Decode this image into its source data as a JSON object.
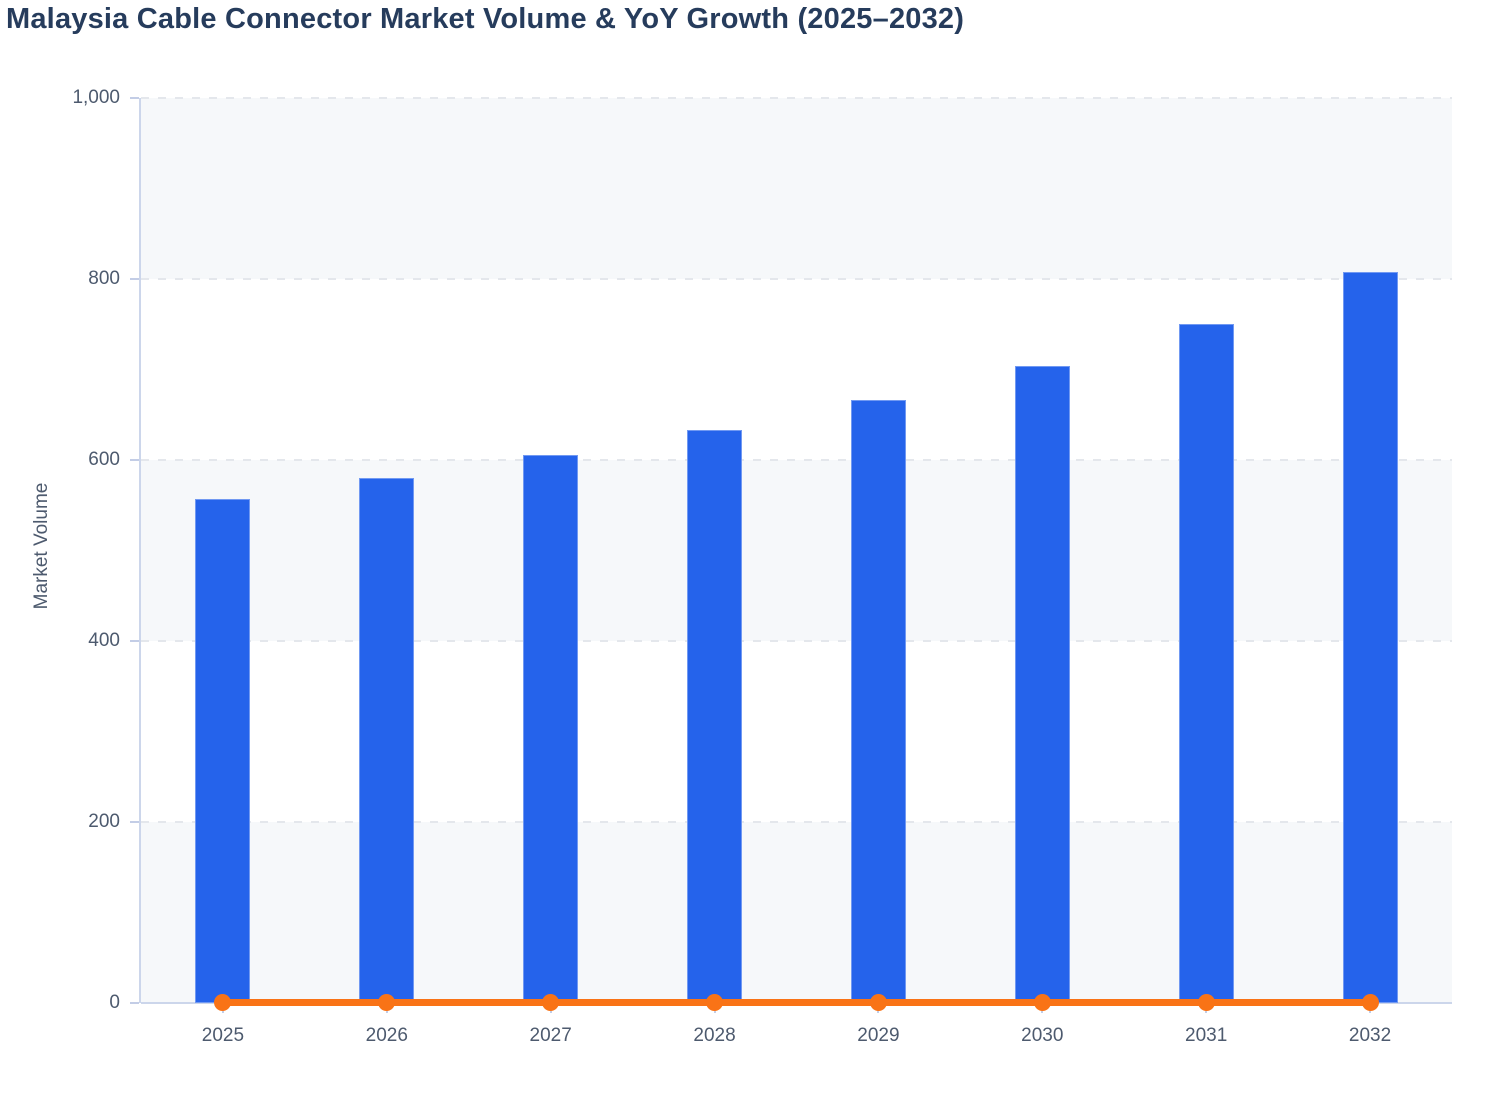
{
  "chart_data": {
    "type": "combo-bar-line",
    "title": "Malaysia Cable Connector Market Volume & YoY Growth (2025–2032)",
    "categories": [
      "2025",
      "2026",
      "2027",
      "2028",
      "2029",
      "2030",
      "2031",
      "2032"
    ],
    "series": [
      {
        "name": "Market Volume",
        "type": "bar",
        "color": "#2563eb",
        "values": [
          557,
          580,
          605,
          633,
          666,
          704,
          750,
          808
        ]
      },
      {
        "name": "YoY Growth",
        "type": "line",
        "color": "#f97316",
        "values": [
          0,
          0,
          0,
          0,
          0,
          0,
          0,
          0
        ]
      }
    ],
    "xlabel": "",
    "ylabel": "Market Volume",
    "ylim": [
      0,
      1000
    ],
    "ytick_step": 200,
    "ytick_labels": [
      "0",
      "200",
      "400",
      "600",
      "800",
      "1,000"
    ],
    "grid": "horizontal dashed",
    "legend": "none",
    "plot_band_colors": [
      "#f6f8fa",
      "#ffffff"
    ]
  },
  "colors": {
    "title_text": "#263c5c",
    "axis_text": "#4d5a6e",
    "axis_line": "#ccd6eb",
    "gridline": "#e4e7ec",
    "bar_fill": "#2563eb",
    "line_stroke": "#f97316",
    "band_gray": "#f6f8fa",
    "background": "#ffffff"
  }
}
